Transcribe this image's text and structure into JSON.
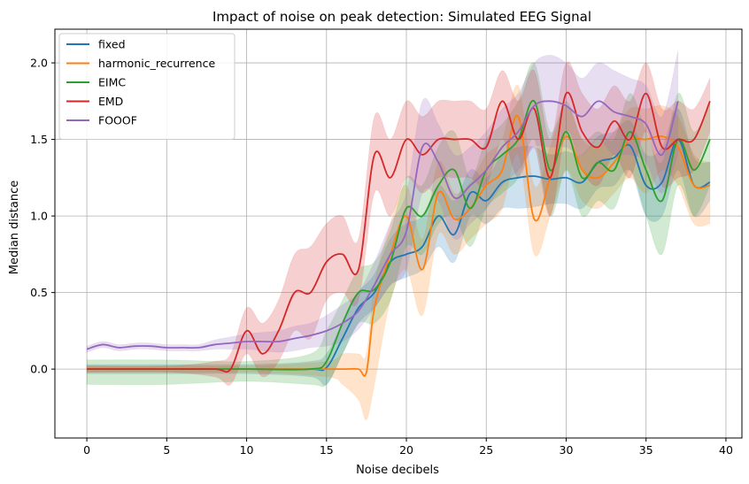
{
  "chart_data": {
    "type": "line",
    "title": "Impact of noise on peak detection: Simulated EEG Signal",
    "xlabel": "Noise decibels",
    "ylabel": "Median distance",
    "xlim": [
      -2,
      41
    ],
    "ylim": [
      -0.45,
      2.22
    ],
    "xticks": [
      0,
      5,
      10,
      15,
      20,
      25,
      30,
      35,
      40
    ],
    "yticks": [
      0.0,
      0.5,
      1.0,
      1.5,
      2.0
    ],
    "xtick_labels": [
      "0",
      "5",
      "10",
      "15",
      "20",
      "25",
      "30",
      "35",
      "40"
    ],
    "ytick_labels": [
      "0.0",
      "0.5",
      "1.0",
      "1.5",
      "2.0"
    ],
    "grid": true,
    "legend_position": "top-left",
    "band_opacity": 0.22,
    "series": [
      {
        "name": "fixed",
        "color": "#1f77b4",
        "x": [
          0,
          5,
          10,
          14,
          15,
          16,
          17,
          18,
          19,
          20,
          21,
          22,
          23,
          24,
          25,
          26,
          27,
          28,
          29,
          30,
          31,
          32,
          33,
          34,
          35,
          36,
          37,
          38,
          39
        ],
        "y": [
          0.0,
          0.0,
          0.0,
          0.0,
          0.01,
          0.2,
          0.4,
          0.5,
          0.7,
          0.75,
          0.8,
          1.0,
          0.88,
          1.15,
          1.1,
          1.22,
          1.25,
          1.26,
          1.24,
          1.25,
          1.22,
          1.35,
          1.38,
          1.46,
          1.2,
          1.22,
          1.5,
          1.2,
          1.22
        ],
        "upper": [
          0.03,
          0.03,
          0.03,
          0.05,
          0.1,
          0.3,
          0.5,
          0.62,
          0.85,
          0.95,
          1.0,
          1.2,
          1.1,
          1.3,
          1.25,
          1.4,
          1.45,
          1.45,
          1.4,
          1.42,
          1.4,
          1.52,
          1.55,
          1.62,
          1.4,
          1.45,
          1.7,
          1.38,
          1.35
        ],
        "lower": [
          -0.03,
          -0.03,
          -0.03,
          -0.05,
          -0.1,
          0.1,
          0.3,
          0.4,
          0.55,
          0.6,
          0.65,
          0.8,
          0.7,
          1.0,
          0.95,
          1.05,
          1.05,
          1.06,
          1.08,
          1.08,
          1.05,
          1.18,
          1.2,
          1.3,
          1.0,
          1.0,
          1.3,
          1.0,
          1.1
        ]
      },
      {
        "name": "harmonic_recurrence",
        "color": "#ff7f0e",
        "x": [
          0,
          5,
          10,
          15,
          16,
          17,
          17.5,
          18,
          19,
          20,
          21,
          22,
          23,
          24,
          25,
          26,
          27,
          28,
          29,
          30,
          31,
          32,
          33,
          34,
          35,
          36,
          37,
          38,
          39
        ],
        "y": [
          0.0,
          0.0,
          0.0,
          0.0,
          0.0,
          0.0,
          -0.02,
          0.4,
          0.75,
          1.0,
          0.65,
          1.15,
          0.98,
          1.05,
          1.2,
          1.3,
          1.65,
          0.98,
          1.25,
          1.52,
          1.3,
          1.25,
          1.35,
          1.5,
          1.5,
          1.52,
          1.45,
          1.2,
          1.2
        ],
        "upper": [
          0.02,
          0.02,
          0.02,
          0.05,
          0.1,
          0.1,
          0.1,
          0.55,
          0.95,
          1.2,
          0.85,
          1.35,
          1.15,
          1.22,
          1.4,
          1.5,
          1.85,
          1.2,
          1.45,
          1.72,
          1.5,
          1.45,
          1.55,
          1.7,
          1.7,
          1.72,
          1.65,
          1.4,
          1.35
        ],
        "lower": [
          -0.02,
          -0.02,
          -0.02,
          -0.05,
          -0.1,
          -0.2,
          -0.33,
          -0.1,
          0.45,
          0.65,
          0.35,
          0.88,
          0.75,
          0.85,
          0.95,
          1.05,
          1.4,
          0.75,
          1.0,
          1.3,
          1.1,
          1.05,
          1.15,
          1.25,
          1.15,
          1.3,
          1.2,
          0.95,
          0.95
        ]
      },
      {
        "name": "EIMC",
        "color": "#2ca02c",
        "x": [
          0,
          5,
          10,
          14,
          15,
          16,
          17,
          18,
          19,
          20,
          21,
          22,
          23,
          24,
          25,
          26,
          27,
          28,
          29,
          30,
          31,
          32,
          33,
          34,
          35,
          36,
          37,
          38,
          39
        ],
        "y": [
          0.0,
          0.0,
          0.0,
          0.0,
          0.05,
          0.3,
          0.5,
          0.52,
          0.7,
          1.05,
          1.0,
          1.2,
          1.3,
          1.05,
          1.3,
          1.4,
          1.5,
          1.75,
          1.3,
          1.55,
          1.25,
          1.35,
          1.3,
          1.55,
          1.3,
          1.1,
          1.5,
          1.3,
          1.5
        ],
        "upper": [
          0.06,
          0.06,
          0.05,
          0.1,
          0.25,
          0.45,
          0.65,
          0.7,
          0.9,
          1.25,
          1.2,
          1.45,
          1.55,
          1.25,
          1.5,
          1.6,
          1.75,
          2.0,
          1.55,
          1.75,
          1.5,
          1.55,
          1.5,
          1.8,
          1.55,
          1.35,
          1.8,
          1.55,
          1.75
        ],
        "lower": [
          -0.1,
          -0.1,
          -0.08,
          -0.1,
          -0.1,
          0.1,
          0.3,
          0.3,
          0.45,
          0.8,
          0.75,
          0.95,
          1.0,
          0.8,
          1.05,
          1.15,
          1.25,
          1.5,
          1.0,
          1.3,
          1.0,
          1.1,
          1.05,
          1.3,
          1.0,
          0.75,
          1.2,
          1.0,
          1.2
        ]
      },
      {
        "name": "EMD",
        "color": "#d62728",
        "x": [
          0,
          5,
          8,
          9,
          10,
          11,
          12,
          13,
          14,
          15,
          16,
          17,
          18,
          19,
          20,
          21,
          22,
          23,
          24,
          25,
          26,
          27,
          28,
          29,
          30,
          31,
          32,
          33,
          34,
          35,
          36,
          37,
          38,
          39
        ],
        "y": [
          0.0,
          0.0,
          0.0,
          0.0,
          0.25,
          0.1,
          0.25,
          0.5,
          0.5,
          0.7,
          0.75,
          0.65,
          1.4,
          1.25,
          1.5,
          1.4,
          1.5,
          1.5,
          1.5,
          1.45,
          1.75,
          1.5,
          1.7,
          1.25,
          1.8,
          1.55,
          1.45,
          1.62,
          1.5,
          1.8,
          1.45,
          1.5,
          1.5,
          1.75
        ],
        "upper": [
          0.02,
          0.02,
          0.05,
          0.1,
          0.4,
          0.3,
          0.45,
          0.75,
          0.8,
          0.95,
          1.0,
          0.85,
          1.65,
          1.5,
          1.75,
          1.65,
          1.75,
          1.75,
          1.75,
          1.7,
          1.95,
          1.75,
          1.95,
          1.5,
          2.0,
          1.8,
          1.7,
          1.85,
          1.75,
          2.0,
          1.7,
          1.75,
          1.7,
          1.9
        ],
        "lower": [
          -0.02,
          -0.02,
          -0.05,
          -0.1,
          0.1,
          -0.05,
          0.05,
          0.25,
          0.2,
          0.45,
          0.5,
          0.45,
          1.15,
          1.0,
          1.25,
          1.15,
          1.25,
          1.25,
          1.25,
          1.2,
          1.5,
          1.25,
          1.45,
          1.0,
          1.55,
          1.3,
          1.2,
          1.4,
          1.25,
          1.55,
          1.2,
          1.25,
          1.3,
          1.55
        ]
      },
      {
        "name": "FOOOF",
        "color": "#9467bd",
        "x": [
          0,
          1,
          2,
          3,
          4,
          5,
          6,
          7,
          8,
          9,
          10,
          11,
          12,
          13,
          14,
          15,
          16,
          17,
          18,
          19,
          20,
          21,
          22,
          23,
          24,
          25,
          26,
          27,
          28,
          29,
          30,
          31,
          32,
          33,
          34,
          35,
          36,
          37
        ],
        "y": [
          0.13,
          0.16,
          0.14,
          0.15,
          0.15,
          0.14,
          0.14,
          0.14,
          0.16,
          0.17,
          0.18,
          0.18,
          0.18,
          0.2,
          0.22,
          0.25,
          0.3,
          0.38,
          0.55,
          0.75,
          0.9,
          1.45,
          1.35,
          1.12,
          1.2,
          1.3,
          1.45,
          1.55,
          1.72,
          1.75,
          1.72,
          1.65,
          1.75,
          1.68,
          1.65,
          1.6,
          1.4,
          1.75
        ],
        "upper": [
          0.15,
          0.18,
          0.16,
          0.17,
          0.17,
          0.16,
          0.16,
          0.16,
          0.19,
          0.21,
          0.23,
          0.24,
          0.25,
          0.28,
          0.3,
          0.35,
          0.42,
          0.5,
          0.7,
          0.95,
          1.15,
          1.75,
          1.6,
          1.4,
          1.45,
          1.55,
          1.7,
          1.8,
          2.0,
          2.05,
          2.0,
          1.9,
          2.0,
          1.95,
          1.9,
          1.85,
          1.65,
          2.08
        ],
        "lower": [
          0.11,
          0.14,
          0.12,
          0.13,
          0.13,
          0.12,
          0.12,
          0.12,
          0.13,
          0.13,
          0.13,
          0.12,
          0.11,
          0.12,
          0.14,
          0.15,
          0.18,
          0.26,
          0.4,
          0.55,
          0.65,
          1.15,
          1.1,
          0.85,
          0.95,
          1.05,
          1.2,
          1.3,
          1.45,
          1.45,
          1.45,
          1.4,
          1.5,
          1.4,
          1.4,
          1.35,
          1.15,
          1.4
        ]
      }
    ]
  }
}
